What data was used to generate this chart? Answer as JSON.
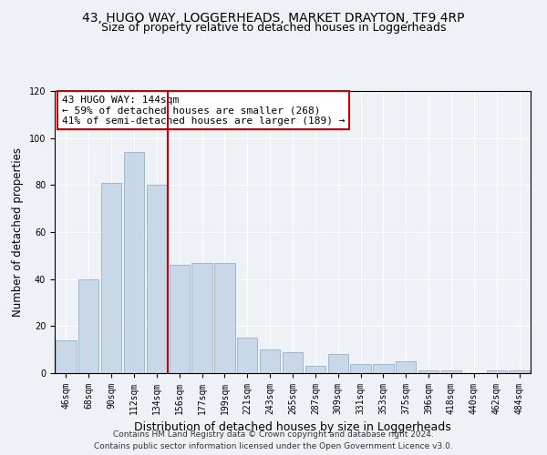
{
  "title1": "43, HUGO WAY, LOGGERHEADS, MARKET DRAYTON, TF9 4RP",
  "title2": "Size of property relative to detached houses in Loggerheads",
  "xlabel": "Distribution of detached houses by size in Loggerheads",
  "ylabel": "Number of detached properties",
  "bar_labels": [
    "46sqm",
    "68sqm",
    "90sqm",
    "112sqm",
    "134sqm",
    "156sqm",
    "177sqm",
    "199sqm",
    "221sqm",
    "243sqm",
    "265sqm",
    "287sqm",
    "309sqm",
    "331sqm",
    "353sqm",
    "375sqm",
    "396sqm",
    "418sqm",
    "440sqm",
    "462sqm",
    "484sqm"
  ],
  "bar_values": [
    14,
    40,
    81,
    94,
    80,
    46,
    47,
    47,
    15,
    10,
    9,
    3,
    8,
    4,
    4,
    5,
    1,
    1,
    0,
    1,
    1
  ],
  "bar_color": "#c8d8e8",
  "bar_edge_color": "#a0b8cc",
  "vline_x": 4.5,
  "annotation_text": "43 HUGO WAY: 144sqm\n← 59% of detached houses are smaller (268)\n41% of semi-detached houses are larger (189) →",
  "annotation_box_color": "#ffffff",
  "annotation_box_edge": "#cc0000",
  "vline_color": "#cc0000",
  "ylim": [
    0,
    120
  ],
  "yticks": [
    0,
    20,
    40,
    60,
    80,
    100,
    120
  ],
  "footer1": "Contains HM Land Registry data © Crown copyright and database right 2024.",
  "footer2": "Contains public sector information licensed under the Open Government Licence v3.0.",
  "title1_fontsize": 10,
  "title2_fontsize": 9,
  "tick_fontsize": 7,
  "ylabel_fontsize": 8.5,
  "xlabel_fontsize": 9,
  "footer_fontsize": 6.5,
  "annotation_fontsize": 8,
  "background_color": "#eef2f7"
}
